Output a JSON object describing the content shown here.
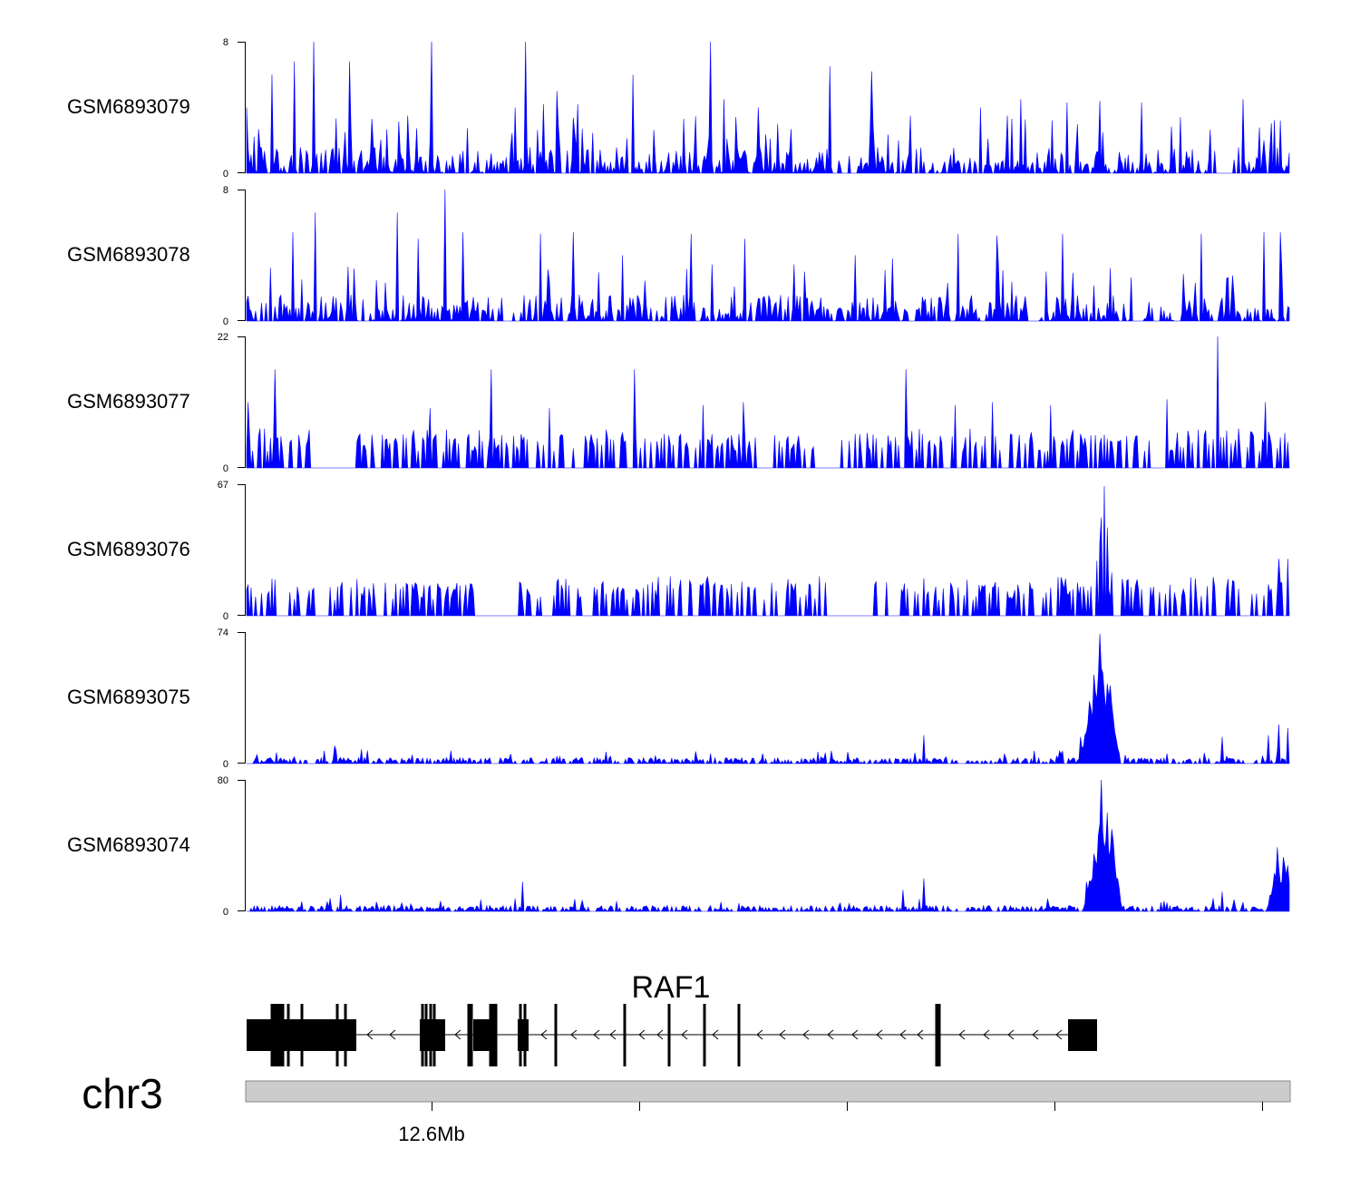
{
  "chart_data": {
    "type": "area",
    "color": "#0000ff",
    "tracks": [
      {
        "name": "GSM6893079",
        "ymax": 8,
        "ymin": 0,
        "ytick_top": "8",
        "ytick_bottom": "0",
        "style": "dense",
        "peaks": [
          [
            0.0,
            4
          ],
          [
            0.025,
            6
          ],
          [
            0.046,
            6.8
          ],
          [
            0.064,
            8
          ],
          [
            0.099,
            6.8
          ],
          [
            0.155,
            3.5
          ],
          [
            0.178,
            8
          ],
          [
            0.257,
            4
          ],
          [
            0.268,
            8
          ],
          [
            0.285,
            4.2
          ],
          [
            0.298,
            5
          ],
          [
            0.318,
            4.2
          ],
          [
            0.37,
            6
          ],
          [
            0.445,
            8
          ],
          [
            0.458,
            4.5
          ],
          [
            0.49,
            4
          ],
          [
            0.51,
            3
          ],
          [
            0.559,
            6.5
          ],
          [
            0.6,
            6.2
          ],
          [
            0.625,
            2
          ],
          [
            0.704,
            4
          ],
          [
            0.742,
            4.5
          ],
          [
            0.787,
            4.3
          ],
          [
            0.819,
            4.4
          ],
          [
            0.858,
            4.3
          ],
          [
            0.935,
            4.5
          ],
          [
            0.955,
            4.5
          ],
          [
            0.976,
            2
          ]
        ],
        "gaps": [
          [
            0.302,
            0.306
          ],
          [
            0.574,
            0.577
          ],
          [
            0.58,
            0.585
          ],
          [
            0.93,
            0.945
          ]
        ]
      },
      {
        "name": "GSM6893078",
        "ymax": 8,
        "ymin": 0,
        "ytick_top": "8",
        "ytick_bottom": "0",
        "style": "dense",
        "peaks": [
          [
            0.045,
            5.4
          ],
          [
            0.066,
            6.6
          ],
          [
            0.145,
            6.6
          ],
          [
            0.165,
            5
          ],
          [
            0.19,
            8
          ],
          [
            0.207,
            5.4
          ],
          [
            0.282,
            5.3
          ],
          [
            0.313,
            5.4
          ],
          [
            0.36,
            4
          ],
          [
            0.427,
            5.3
          ],
          [
            0.478,
            5
          ],
          [
            0.535,
            3
          ],
          [
            0.584,
            4
          ],
          [
            0.62,
            3.8
          ],
          [
            0.683,
            5.3
          ],
          [
            0.72,
            5.2
          ],
          [
            0.783,
            5.3
          ],
          [
            0.85,
            3.8
          ],
          [
            0.916,
            5.3
          ],
          [
            0.975,
            5.4
          ],
          [
            0.991,
            5.4
          ]
        ],
        "gaps": [
          [
            0.247,
            0.255
          ],
          [
            0.75,
            0.76
          ],
          [
            0.85,
            0.86
          ]
        ]
      },
      {
        "name": "GSM6893077",
        "ymax": 22,
        "ymin": 0,
        "ytick_top": "22",
        "ytick_bottom": "0",
        "style": "sparse",
        "peaks": [
          [
            0.002,
            11
          ],
          [
            0.012,
            5.3
          ],
          [
            0.027,
            16.5
          ],
          [
            0.03,
            5
          ],
          [
            0.095,
            5.3
          ],
          [
            0.176,
            10
          ],
          [
            0.235,
            16.5
          ],
          [
            0.29,
            10
          ],
          [
            0.372,
            16.5
          ],
          [
            0.438,
            10.5
          ],
          [
            0.477,
            11
          ],
          [
            0.632,
            16.5
          ],
          [
            0.68,
            10.5
          ],
          [
            0.715,
            11
          ],
          [
            0.771,
            10.5
          ],
          [
            0.882,
            11.5
          ],
          [
            0.932,
            22
          ],
          [
            0.977,
            11
          ]
        ],
        "gaps": [
          [
            0.062,
            0.1
          ],
          [
            0.545,
            0.57
          ]
        ]
      },
      {
        "name": "GSM6893076",
        "ymax": 67,
        "ymin": 0,
        "ytick_top": "67",
        "ytick_bottom": "0",
        "style": "sparse",
        "peaks": [
          [
            0.065,
            14
          ],
          [
            0.085,
            8
          ],
          [
            0.155,
            9
          ],
          [
            0.19,
            9
          ],
          [
            0.318,
            14
          ],
          [
            0.333,
            8
          ],
          [
            0.456,
            9
          ],
          [
            0.66,
            10
          ],
          [
            0.79,
            6
          ],
          [
            0.81,
            15
          ],
          [
            0.815,
            28
          ],
          [
            0.818,
            38
          ],
          [
            0.82,
            50
          ],
          [
            0.822,
            66
          ],
          [
            0.826,
            45
          ],
          [
            0.83,
            22
          ],
          [
            0.87,
            10
          ],
          [
            0.94,
            13
          ],
          [
            0.98,
            16
          ],
          [
            0.99,
            29
          ],
          [
            0.998,
            29
          ]
        ],
        "gaps": [
          [
            0.22,
            0.26
          ],
          [
            0.57,
            0.6
          ]
        ]
      },
      {
        "name": "GSM6893075",
        "ymax": 74,
        "ymin": 0,
        "ytick_top": "74",
        "ytick_bottom": "0",
        "style": "lowdense",
        "peaks": [
          [
            0.01,
            5
          ],
          [
            0.085,
            10
          ],
          [
            0.11,
            8
          ],
          [
            0.65,
            16
          ],
          [
            0.8,
            15
          ],
          [
            0.808,
            35
          ],
          [
            0.812,
            50
          ],
          [
            0.815,
            36
          ],
          [
            0.818,
            73
          ],
          [
            0.822,
            40
          ],
          [
            0.825,
            45
          ],
          [
            0.828,
            44
          ],
          [
            0.832,
            18
          ],
          [
            0.935,
            15
          ],
          [
            0.98,
            16
          ],
          [
            0.99,
            22
          ],
          [
            0.998,
            20
          ]
        ],
        "gaps": [
          [
            0.0,
            0.005
          ]
        ]
      },
      {
        "name": "GSM6893074",
        "ymax": 80,
        "ymin": 0,
        "ytick_top": "80",
        "ytick_bottom": "0",
        "style": "lowdense",
        "peaks": [
          [
            0.08,
            8
          ],
          [
            0.09,
            10
          ],
          [
            0.265,
            18
          ],
          [
            0.63,
            13
          ],
          [
            0.65,
            20
          ],
          [
            0.805,
            18
          ],
          [
            0.812,
            35
          ],
          [
            0.818,
            53
          ],
          [
            0.82,
            80
          ],
          [
            0.826,
            60
          ],
          [
            0.83,
            50
          ],
          [
            0.835,
            20
          ],
          [
            0.935,
            12
          ],
          [
            0.988,
            39
          ],
          [
            0.994,
            33
          ],
          [
            0.998,
            28
          ]
        ],
        "gaps": []
      }
    ],
    "gene": {
      "name": "RAF1",
      "strand": "-",
      "color": "#000000"
    },
    "chromosome": {
      "name": "chr3"
    },
    "xaxis": {
      "tick_label": "12.6Mb"
    }
  }
}
